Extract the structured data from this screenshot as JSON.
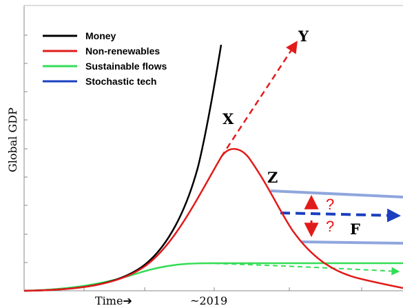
{
  "chart_data": {
    "type": "line",
    "xlabel": "Time",
    "xlabel_arrow": "➔",
    "x_marker": "~2019",
    "ylabel": "Global GDP",
    "grid": false,
    "legend_position": "top-left",
    "legend": [
      {
        "name": "Money",
        "color": "#000000"
      },
      {
        "name": "Non-renewables",
        "color": "#e11b1b"
      },
      {
        "name": "Sustainable flows",
        "color": "#33dd55"
      },
      {
        "name": "Stochastic tech",
        "color": "#1a3fbf"
      }
    ],
    "annotations": {
      "X": "X",
      "Y": "Y",
      "Z": "Z",
      "F": "F",
      "q1": "?",
      "q2": "?"
    },
    "colors": {
      "money": "#000000",
      "nonrenewables": "#e11b1b",
      "sustainable": "#33dd55",
      "tech_band": "#8fa6dd",
      "tech_arrow": "#1a3fbf"
    }
  }
}
